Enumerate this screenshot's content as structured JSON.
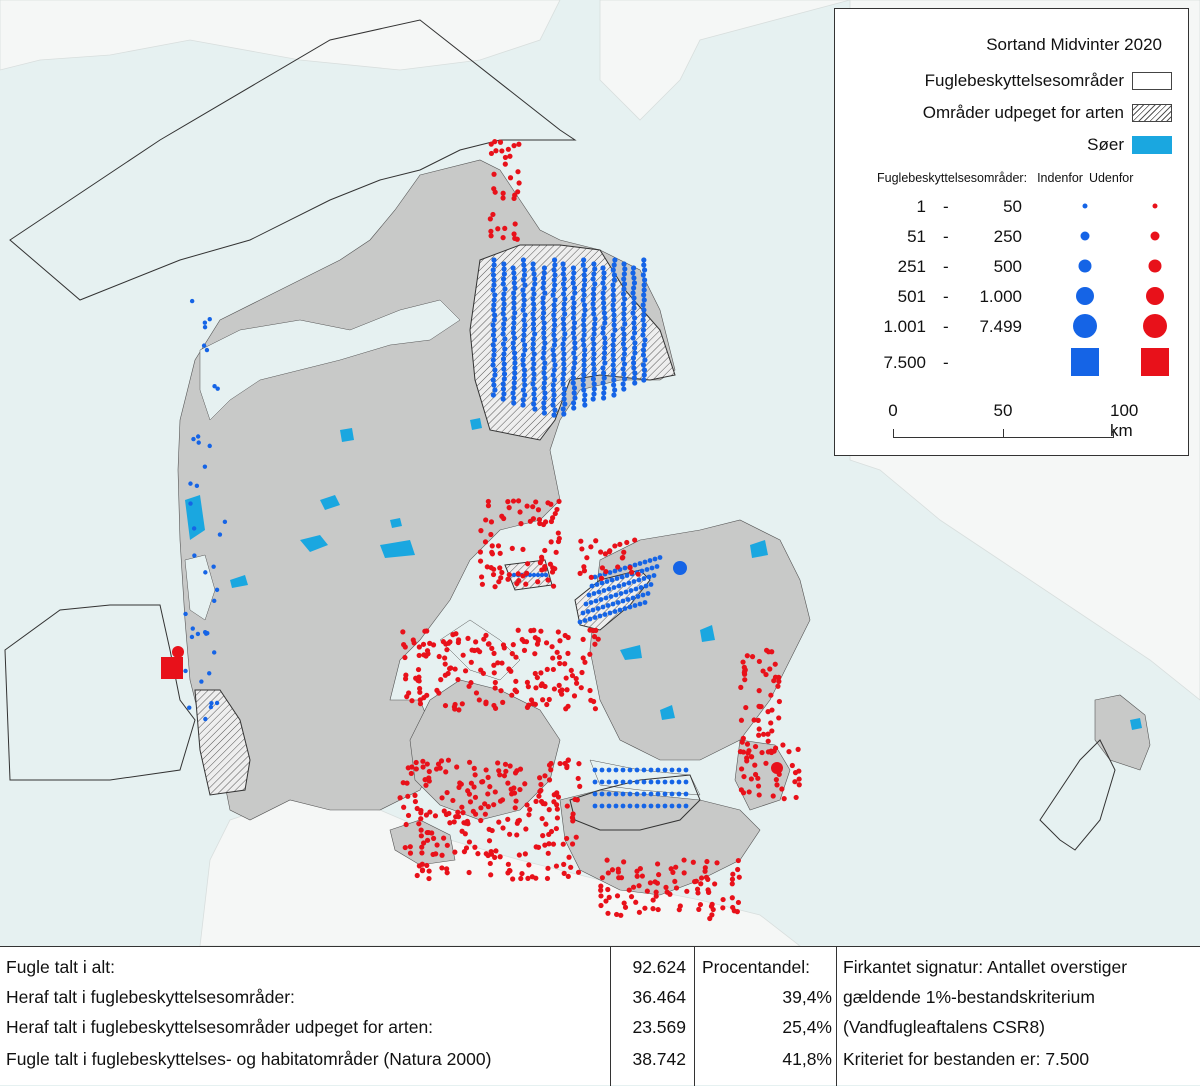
{
  "colors": {
    "sea": "#e6f1f1",
    "land_danish": "#c8c9c8",
    "land_foreign": "#f5f7f6",
    "lakes": "#1aa7e0",
    "inside_symbol": "#1564e6",
    "outside_symbol": "#e8111a"
  },
  "legend": {
    "title": "Sortand Midvinter 2020",
    "items": [
      {
        "label": "Fuglebeskyttelsesområder",
        "swatch": "white"
      },
      {
        "label": "Områder udpeget for arten",
        "swatch": "hatch"
      },
      {
        "label": "Søer",
        "swatch": "lake"
      }
    ],
    "symbol_header": {
      "label": "Fuglebeskyttelsesområder:",
      "inside": "Indenfor",
      "outside": "Udenfor"
    },
    "classes": [
      {
        "from": "1",
        "to": "50",
        "shape": "circle",
        "size_rank": 1
      },
      {
        "from": "51",
        "to": "250",
        "shape": "circle",
        "size_rank": 2
      },
      {
        "from": "251",
        "to": "500",
        "shape": "circle",
        "size_rank": 3
      },
      {
        "from": "501",
        "to": "1.000",
        "shape": "circle",
        "size_rank": 4
      },
      {
        "from": "1.001",
        "to": "7.499",
        "shape": "circle",
        "size_rank": 5
      },
      {
        "from": "7.500",
        "to": "",
        "shape": "square",
        "size_rank": 6
      }
    ],
    "scalebar": {
      "ticks": [
        "0",
        "50",
        "100 km"
      ]
    }
  },
  "stats": {
    "rows": [
      {
        "label": "Fugle talt i alt:",
        "value": "92.624",
        "percent": "Procentandel:",
        "note": "Firkantet signatur: Antallet overstiger"
      },
      {
        "label": "Heraf talt i fuglebeskyttelsesområder:",
        "value": "36.464",
        "percent": "39,4%",
        "note": "gældende 1%-bestandskriterium"
      },
      {
        "label": "Heraf talt i fuglebeskyttelsesområder udpeget for arten:",
        "value": "23.569",
        "percent": "25,4%",
        "note": "(Vandfugleaftalens CSR8)"
      },
      {
        "label": "Fugle talt i fuglebeskyttelses- og habitatområder (Natura 2000)",
        "value": "38.742",
        "percent": "41,8%",
        "note": "Kriteriet for bestanden er: 7.500"
      }
    ]
  }
}
